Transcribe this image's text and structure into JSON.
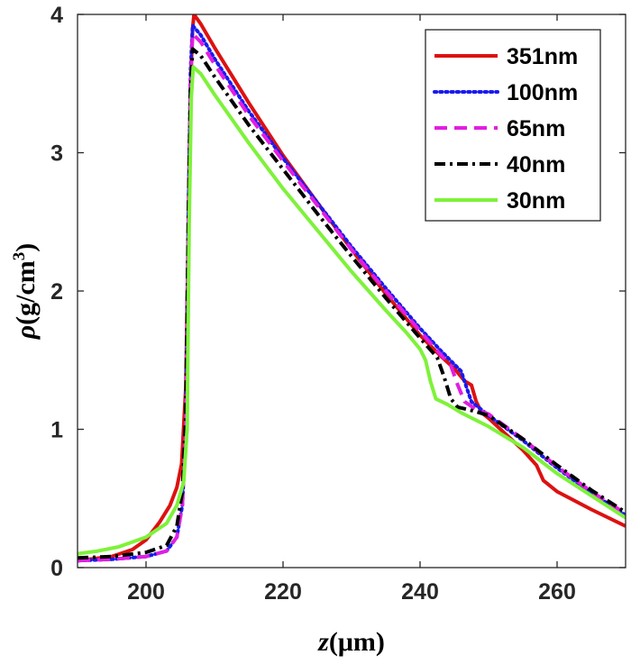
{
  "chart_data": {
    "type": "line",
    "xlabel_italic": "z",
    "xlabel_rest": "(μm)",
    "ylabel_italic": "ρ",
    "ylabel_rest": "(g/cm",
    "ylabel_sup": "3",
    "ylabel_close": ")",
    "xlim": [
      190,
      270
    ],
    "ylim": [
      0,
      4
    ],
    "xticks": [
      200,
      220,
      240,
      260
    ],
    "yticks": [
      0,
      1,
      2,
      3,
      4
    ],
    "grid": false,
    "legend_position": "top-right",
    "series": [
      {
        "name": "351nm",
        "color": "#dd1111",
        "dash": "solid",
        "points": [
          [
            190,
            0.05
          ],
          [
            195,
            0.08
          ],
          [
            198,
            0.13
          ],
          [
            200,
            0.2
          ],
          [
            202,
            0.33
          ],
          [
            203.5,
            0.45
          ],
          [
            204.5,
            0.58
          ],
          [
            205.2,
            0.75
          ],
          [
            205.8,
            1.3
          ],
          [
            206.2,
            2.5
          ],
          [
            206.5,
            3.5
          ],
          [
            206.8,
            3.9
          ],
          [
            207,
            4.0
          ],
          [
            208,
            3.93
          ],
          [
            210,
            3.76
          ],
          [
            215,
            3.36
          ],
          [
            220,
            2.98
          ],
          [
            225,
            2.64
          ],
          [
            230,
            2.3
          ],
          [
            235,
            1.98
          ],
          [
            240,
            1.68
          ],
          [
            243,
            1.53
          ],
          [
            245,
            1.44
          ],
          [
            246.5,
            1.35
          ],
          [
            247.5,
            1.32
          ],
          [
            248.2,
            1.2
          ],
          [
            249,
            1.12
          ],
          [
            250,
            1.08
          ],
          [
            255,
            0.85
          ],
          [
            257,
            0.74
          ],
          [
            258,
            0.63
          ],
          [
            260,
            0.55
          ],
          [
            265,
            0.42
          ],
          [
            270,
            0.3
          ]
        ]
      },
      {
        "name": "100nm",
        "color": "#1a1aee",
        "dash": "dot",
        "points": [
          [
            190,
            0.05
          ],
          [
            195,
            0.06
          ],
          [
            200,
            0.08
          ],
          [
            203,
            0.12
          ],
          [
            204.5,
            0.22
          ],
          [
            205.3,
            0.45
          ],
          [
            205.8,
            1.0
          ],
          [
            206.2,
            2.6
          ],
          [
            206.5,
            3.6
          ],
          [
            206.8,
            3.92
          ],
          [
            208,
            3.85
          ],
          [
            210,
            3.68
          ],
          [
            215,
            3.3
          ],
          [
            220,
            2.96
          ],
          [
            225,
            2.64
          ],
          [
            230,
            2.32
          ],
          [
            235,
            2.02
          ],
          [
            240,
            1.73
          ],
          [
            243,
            1.57
          ],
          [
            245,
            1.47
          ],
          [
            246,
            1.42
          ],
          [
            246.8,
            1.3
          ],
          [
            247.5,
            1.2
          ],
          [
            249,
            1.14
          ],
          [
            250,
            1.1
          ],
          [
            255,
            0.92
          ],
          [
            260,
            0.72
          ],
          [
            265,
            0.54
          ],
          [
            270,
            0.38
          ]
        ]
      },
      {
        "name": "65nm",
        "color": "#e21ee2",
        "dash": "dash",
        "points": [
          [
            190,
            0.05
          ],
          [
            195,
            0.06
          ],
          [
            200,
            0.08
          ],
          [
            203,
            0.12
          ],
          [
            204.5,
            0.22
          ],
          [
            205.3,
            0.45
          ],
          [
            205.8,
            1.0
          ],
          [
            206.2,
            2.6
          ],
          [
            206.5,
            3.5
          ],
          [
            206.8,
            3.86
          ],
          [
            208,
            3.8
          ],
          [
            210,
            3.64
          ],
          [
            215,
            3.27
          ],
          [
            220,
            2.94
          ],
          [
            225,
            2.62
          ],
          [
            230,
            2.3
          ],
          [
            235,
            2.0
          ],
          [
            240,
            1.71
          ],
          [
            243,
            1.54
          ],
          [
            244.5,
            1.46
          ],
          [
            245.5,
            1.32
          ],
          [
            246.5,
            1.2
          ],
          [
            248,
            1.15
          ],
          [
            250,
            1.11
          ],
          [
            255,
            0.93
          ],
          [
            260,
            0.73
          ],
          [
            265,
            0.55
          ],
          [
            270,
            0.39
          ]
        ]
      },
      {
        "name": "40nm",
        "color": "#000000",
        "dash": "dashdot",
        "points": [
          [
            190,
            0.07
          ],
          [
            195,
            0.08
          ],
          [
            200,
            0.11
          ],
          [
            203,
            0.16
          ],
          [
            204.5,
            0.3
          ],
          [
            205.3,
            0.55
          ],
          [
            205.8,
            1.1
          ],
          [
            206.2,
            2.6
          ],
          [
            206.5,
            3.45
          ],
          [
            206.8,
            3.75
          ],
          [
            208,
            3.7
          ],
          [
            210,
            3.55
          ],
          [
            215,
            3.2
          ],
          [
            220,
            2.88
          ],
          [
            225,
            2.56
          ],
          [
            230,
            2.25
          ],
          [
            235,
            1.95
          ],
          [
            240,
            1.66
          ],
          [
            242.5,
            1.52
          ],
          [
            243.5,
            1.38
          ],
          [
            244.5,
            1.22
          ],
          [
            245.5,
            1.16
          ],
          [
            248,
            1.13
          ],
          [
            250,
            1.1
          ],
          [
            255,
            0.93
          ],
          [
            260,
            0.74
          ],
          [
            265,
            0.56
          ],
          [
            270,
            0.4
          ]
        ]
      },
      {
        "name": "30nm",
        "color": "#7ef23a",
        "dash": "solid",
        "points": [
          [
            190,
            0.1
          ],
          [
            193,
            0.12
          ],
          [
            196,
            0.15
          ],
          [
            200,
            0.22
          ],
          [
            203,
            0.32
          ],
          [
            204.5,
            0.45
          ],
          [
            205.5,
            0.62
          ],
          [
            206,
            1.0
          ],
          [
            206.3,
            2.5
          ],
          [
            206.6,
            3.4
          ],
          [
            206.9,
            3.62
          ],
          [
            208,
            3.57
          ],
          [
            210,
            3.42
          ],
          [
            215,
            3.07
          ],
          [
            220,
            2.74
          ],
          [
            225,
            2.44
          ],
          [
            230,
            2.14
          ],
          [
            235,
            1.86
          ],
          [
            238,
            1.7
          ],
          [
            240,
            1.58
          ],
          [
            240.8,
            1.5
          ],
          [
            241.5,
            1.35
          ],
          [
            242.3,
            1.22
          ],
          [
            244,
            1.18
          ],
          [
            246,
            1.12
          ],
          [
            250,
            1.02
          ],
          [
            255,
            0.87
          ],
          [
            260,
            0.68
          ],
          [
            265,
            0.52
          ],
          [
            270,
            0.36
          ]
        ]
      }
    ]
  }
}
